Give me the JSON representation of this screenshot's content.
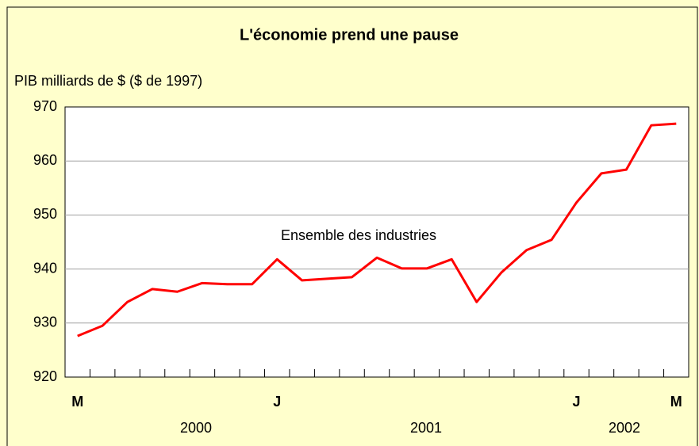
{
  "chart_data": {
    "type": "line",
    "title": "L'économie prend une pause",
    "y_label": "PIB milliards de $ ($ de 1997)",
    "annotation": "Ensemble des industries",
    "categories": [
      "M",
      null,
      null,
      null,
      null,
      null,
      null,
      null,
      "J",
      null,
      null,
      null,
      null,
      null,
      null,
      null,
      null,
      null,
      null,
      null,
      "J",
      null,
      null,
      null,
      "M"
    ],
    "years": [
      "2000",
      "2001",
      "2002"
    ],
    "series": [
      {
        "name": "Ensemble des industries",
        "color": "#ff0000",
        "values": [
          927.6,
          929.5,
          933.9,
          936.3,
          935.8,
          937.4,
          937.2,
          937.2,
          941.8,
          937.9,
          938.2,
          938.5,
          942.1,
          940.1,
          940.1,
          941.8,
          933.9,
          939.4,
          943.5,
          945.4,
          952.3,
          957.7,
          958.4,
          966.6,
          966.9
        ]
      }
    ],
    "ylim": [
      920,
      970
    ],
    "yticks": [
      920,
      930,
      940,
      950,
      960,
      970
    ],
    "grid": true
  }
}
